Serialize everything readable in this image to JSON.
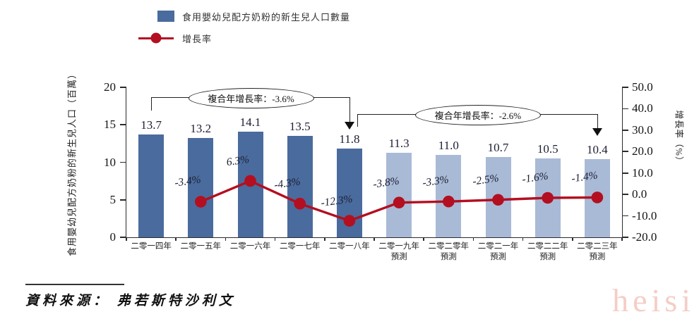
{
  "legend": {
    "items": [
      {
        "label": "食用嬰幼兒配方奶粉的新生兒人口數量",
        "swatch": "bar"
      },
      {
        "label": "增長率",
        "swatch": "line"
      }
    ]
  },
  "chart_data": {
    "type": "bar+line",
    "categories": [
      {
        "label": "二零一四年",
        "sublabel": ""
      },
      {
        "label": "二零一五年",
        "sublabel": ""
      },
      {
        "label": "二零一六年",
        "sublabel": ""
      },
      {
        "label": "二零一七年",
        "sublabel": ""
      },
      {
        "label": "二零一八年",
        "sublabel": ""
      },
      {
        "label": "二零一九年",
        "sublabel": "預測"
      },
      {
        "label": "二零二零年",
        "sublabel": "預測"
      },
      {
        "label": "二零二一年",
        "sublabel": "預測"
      },
      {
        "label": "二零二二年",
        "sublabel": "預測"
      },
      {
        "label": "二零二三年",
        "sublabel": "預測"
      }
    ],
    "bar_series": {
      "name": "食用嬰幼兒配方奶粉的新生兒人口數量",
      "values": [
        13.7,
        13.2,
        14.1,
        13.5,
        11.8,
        11.3,
        11.0,
        10.7,
        10.5,
        10.4
      ],
      "forecast_from_index": 5
    },
    "line_series": {
      "name": "增長率",
      "values": [
        null,
        -3.4,
        6.3,
        -4.3,
        -12.3,
        -3.8,
        -3.3,
        -2.5,
        -1.6,
        -1.4
      ]
    },
    "left_axis": {
      "label": "食用嬰幼兒配方奶粉的新生兒人口（百萬）",
      "ticks": [
        0,
        5,
        10,
        15,
        20
      ],
      "range": [
        0,
        20
      ]
    },
    "right_axis": {
      "label": "增長率（%）",
      "ticks": [
        50,
        40,
        30,
        20,
        10,
        0,
        -10,
        -20
      ],
      "range": [
        -20,
        50
      ]
    },
    "annotations": [
      {
        "text": "複合年增長率：-3.6%",
        "from_index": 0,
        "to_index": 4
      },
      {
        "text": "複合年增長率：-2.6%",
        "from_index": 4,
        "to_index": 9
      }
    ]
  },
  "colors": {
    "bar": "#4a6b9d",
    "bar_forecast": "#a9bad6",
    "line": "#b30f20",
    "watermark": "#f4cec6"
  },
  "source": {
    "text": "資料來源： 弗若斯特沙利文"
  },
  "watermark": {
    "text": "heisi"
  }
}
